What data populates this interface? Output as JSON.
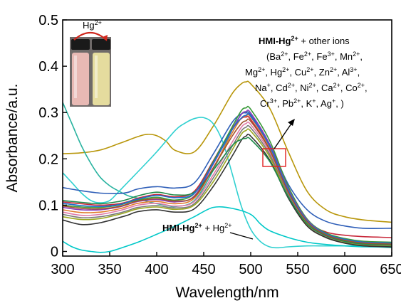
{
  "chart_data": {
    "type": "line",
    "xlabel": "Wavelength/nm",
    "ylabel": "Absorbance/a.u.",
    "xlim": [
      300,
      650
    ],
    "ylim": [
      -0.01,
      0.5
    ],
    "xticks": [
      300,
      350,
      400,
      450,
      500,
      550,
      600,
      650
    ],
    "yticks": [
      0,
      0.1,
      0.2,
      0.3,
      0.4,
      0.5
    ],
    "ytick_labels": [
      "0",
      "0.1",
      "0.2",
      "0.3",
      "0.4",
      "0.5"
    ],
    "grid": false,
    "annotations": {
      "inset_label": "Hg",
      "inset_label_sup": "2+",
      "top_head_bold": "HMI-Hg",
      "top_head_bold_sup": "2+",
      "top_head_rest": " + other ions",
      "ion_lines": [
        [
          [
            "(Ba",
            "2+"
          ],
          [
            ", Fe",
            "2+"
          ],
          [
            ", Fe",
            "3+"
          ],
          [
            ", Mn",
            "2+"
          ],
          [
            ",",
            ""
          ]
        ],
        [
          [
            "Mg",
            "2+"
          ],
          [
            ", Hg",
            "2+"
          ],
          [
            ", Cu",
            "2+"
          ],
          [
            ", Zn",
            "2+"
          ],
          [
            ", Al",
            "3+"
          ],
          [
            ",",
            ""
          ]
        ],
        [
          [
            "Na",
            "+"
          ],
          [
            ", Cd",
            "2+"
          ],
          [
            ", Ni",
            "2+"
          ],
          [
            ", Ca",
            "2+"
          ],
          [
            ", Co",
            "2+"
          ],
          [
            ",",
            ""
          ]
        ],
        [
          [
            "Cr",
            "3+"
          ],
          [
            ", Pb",
            "2+"
          ],
          [
            ", K",
            "+"
          ],
          [
            ", Ag",
            "+"
          ],
          [
            ", )",
            ""
          ]
        ]
      ],
      "bottom_bold": "HMI-Hg",
      "bottom_bold_sup": "2+",
      "bottom_rest": " + Hg",
      "bottom_rest_sup": "2+"
    },
    "series": [
      {
        "color": "#b8960a",
        "x": [
          300,
          320,
          340,
          360,
          380,
          390,
          400,
          410,
          420,
          440,
          460,
          480,
          490,
          495,
          500,
          520,
          540,
          560,
          580,
          600,
          620,
          650
        ],
        "y": [
          0.211,
          0.213,
          0.219,
          0.233,
          0.248,
          0.253,
          0.25,
          0.238,
          0.218,
          0.215,
          0.27,
          0.34,
          0.362,
          0.366,
          0.362,
          0.31,
          0.215,
          0.13,
          0.09,
          0.075,
          0.068,
          0.063
        ]
      },
      {
        "color": "#2ab3a0",
        "x": [
          300,
          310,
          320,
          330,
          340,
          350,
          360,
          370,
          380,
          390,
          400,
          410,
          420,
          440,
          460,
          480,
          490,
          495,
          500,
          520,
          540,
          560,
          580,
          600,
          620,
          650
        ],
        "y": [
          0.322,
          0.275,
          0.228,
          0.19,
          0.16,
          0.142,
          0.13,
          0.12,
          0.115,
          0.108,
          0.103,
          0.1,
          0.097,
          0.11,
          0.175,
          0.262,
          0.296,
          0.3,
          0.295,
          0.23,
          0.13,
          0.065,
          0.032,
          0.018,
          0.012,
          0.008
        ]
      },
      {
        "color": "#2fd0d0",
        "x": [
          300,
          310,
          320,
          330,
          340,
          350,
          360,
          380,
          400,
          420,
          430,
          440,
          450,
          460,
          470,
          480,
          490,
          500,
          510,
          520,
          530,
          540,
          560,
          580,
          600,
          620,
          650
        ],
        "y": [
          0.17,
          0.148,
          0.126,
          0.11,
          0.105,
          0.11,
          0.13,
          0.172,
          0.215,
          0.262,
          0.277,
          0.287,
          0.289,
          0.276,
          0.238,
          0.17,
          0.098,
          0.048,
          0.022,
          0.01,
          0.008,
          0.01,
          0.012,
          0.012,
          0.012,
          0.012,
          0.012
        ]
      },
      {
        "color": "#00c8c8",
        "x": [
          300,
          310,
          320,
          330,
          340,
          350,
          360,
          380,
          400,
          420,
          440,
          460,
          480,
          500,
          510,
          520,
          540,
          560,
          580,
          600,
          620,
          650
        ],
        "y": [
          0.022,
          0.01,
          0.003,
          0.0,
          -0.002,
          0.0,
          0.006,
          0.02,
          0.037,
          0.055,
          0.075,
          0.095,
          0.093,
          0.08,
          0.06,
          0.045,
          0.03,
          0.02,
          0.015,
          0.012,
          0.01,
          0.01
        ]
      },
      {
        "color": "#2f5fb8",
        "x": [
          300,
          320,
          340,
          360,
          370,
          380,
          400,
          420,
          440,
          460,
          480,
          490,
          495,
          500,
          520,
          540,
          560,
          580,
          600,
          620,
          650
        ],
        "y": [
          0.138,
          0.131,
          0.126,
          0.125,
          0.128,
          0.135,
          0.14,
          0.137,
          0.148,
          0.21,
          0.278,
          0.297,
          0.299,
          0.295,
          0.232,
          0.145,
          0.09,
          0.065,
          0.055,
          0.05,
          0.05
        ]
      },
      {
        "color": "#c8283a",
        "x": [
          300,
          320,
          340,
          360,
          370,
          380,
          400,
          420,
          440,
          460,
          480,
          490,
          495,
          500,
          520,
          540,
          560,
          580,
          600,
          620,
          650
        ],
        "y": [
          0.107,
          0.103,
          0.1,
          0.103,
          0.108,
          0.115,
          0.123,
          0.118,
          0.13,
          0.195,
          0.265,
          0.287,
          0.29,
          0.285,
          0.22,
          0.125,
          0.065,
          0.042,
          0.035,
          0.032,
          0.03
        ]
      },
      {
        "color": "#3a9a3a",
        "x": [
          300,
          320,
          340,
          360,
          370,
          380,
          400,
          420,
          440,
          460,
          480,
          490,
          495,
          500,
          520,
          540,
          560,
          580,
          600,
          620,
          650
        ],
        "y": [
          0.1,
          0.096,
          0.095,
          0.1,
          0.106,
          0.111,
          0.117,
          0.111,
          0.125,
          0.193,
          0.268,
          0.304,
          0.31,
          0.307,
          0.24,
          0.14,
          0.07,
          0.04,
          0.028,
          0.022,
          0.02
        ]
      },
      {
        "color": "#8a3ab8",
        "x": [
          300,
          320,
          340,
          360,
          370,
          380,
          400,
          420,
          440,
          460,
          480,
          490,
          495,
          500,
          520,
          540,
          560,
          580,
          600,
          620,
          650
        ],
        "y": [
          0.095,
          0.09,
          0.09,
          0.096,
          0.102,
          0.108,
          0.112,
          0.107,
          0.12,
          0.188,
          0.262,
          0.296,
          0.302,
          0.299,
          0.232,
          0.135,
          0.068,
          0.038,
          0.026,
          0.02,
          0.018
        ]
      },
      {
        "color": "#e07a2a",
        "x": [
          300,
          320,
          340,
          360,
          370,
          380,
          400,
          420,
          440,
          460,
          480,
          490,
          495,
          500,
          520,
          540,
          560,
          580,
          600,
          620,
          650
        ],
        "y": [
          0.09,
          0.084,
          0.085,
          0.092,
          0.098,
          0.104,
          0.108,
          0.103,
          0.115,
          0.18,
          0.255,
          0.288,
          0.292,
          0.29,
          0.225,
          0.13,
          0.065,
          0.036,
          0.024,
          0.018,
          0.016
        ]
      },
      {
        "color": "#e07aa8",
        "x": [
          300,
          320,
          340,
          360,
          370,
          380,
          400,
          420,
          440,
          460,
          480,
          490,
          495,
          500,
          520,
          540,
          560,
          580,
          600,
          620,
          650
        ],
        "y": [
          0.085,
          0.078,
          0.08,
          0.088,
          0.094,
          0.1,
          0.104,
          0.098,
          0.108,
          0.165,
          0.235,
          0.268,
          0.276,
          0.274,
          0.215,
          0.125,
          0.06,
          0.033,
          0.022,
          0.016,
          0.014
        ]
      },
      {
        "color": "#7a7a7a",
        "x": [
          300,
          320,
          340,
          360,
          370,
          380,
          400,
          420,
          440,
          460,
          480,
          490,
          495,
          500,
          520,
          540,
          560,
          580,
          600,
          620,
          650
        ],
        "y": [
          0.08,
          0.073,
          0.075,
          0.083,
          0.089,
          0.095,
          0.099,
          0.094,
          0.103,
          0.158,
          0.226,
          0.26,
          0.268,
          0.267,
          0.21,
          0.122,
          0.058,
          0.031,
          0.02,
          0.014,
          0.012
        ]
      },
      {
        "color": "#9aa820",
        "x": [
          300,
          320,
          340,
          360,
          370,
          380,
          400,
          420,
          440,
          460,
          480,
          490,
          495,
          500,
          520,
          540,
          560,
          580,
          600,
          620,
          650
        ],
        "y": [
          0.075,
          0.069,
          0.071,
          0.08,
          0.086,
          0.092,
          0.096,
          0.091,
          0.1,
          0.15,
          0.218,
          0.253,
          0.261,
          0.26,
          0.205,
          0.118,
          0.056,
          0.03,
          0.019,
          0.013,
          0.011
        ]
      },
      {
        "color": "#333333",
        "x": [
          300,
          320,
          340,
          360,
          370,
          380,
          400,
          420,
          440,
          460,
          480,
          490,
          495,
          500,
          520,
          540,
          560,
          580,
          600,
          620,
          650
        ],
        "y": [
          0.068,
          0.058,
          0.062,
          0.073,
          0.079,
          0.086,
          0.09,
          0.085,
          0.092,
          0.14,
          0.205,
          0.24,
          0.249,
          0.249,
          0.198,
          0.115,
          0.055,
          0.03,
          0.018,
          0.012,
          0.01
        ]
      },
      {
        "color": "#1f8a4a",
        "x": [
          300,
          320,
          340,
          360,
          370,
          380,
          400,
          420,
          440,
          460,
          480,
          490,
          495,
          500,
          520,
          540,
          560,
          580,
          600,
          620,
          650
        ],
        "y": [
          0.11,
          0.106,
          0.103,
          0.108,
          0.113,
          0.12,
          0.128,
          0.122,
          0.128,
          0.175,
          0.228,
          0.242,
          0.244,
          0.242,
          0.195,
          0.118,
          0.06,
          0.034,
          0.022,
          0.016,
          0.014
        ]
      },
      {
        "color": "#1e6ed0",
        "x": [
          300,
          320,
          340,
          360,
          370,
          380,
          400,
          420,
          440,
          460,
          480,
          490,
          495,
          500,
          520,
          540,
          560,
          580,
          600,
          620,
          650
        ],
        "y": [
          0.104,
          0.099,
          0.097,
          0.101,
          0.107,
          0.113,
          0.121,
          0.116,
          0.126,
          0.19,
          0.262,
          0.288,
          0.294,
          0.292,
          0.228,
          0.132,
          0.066,
          0.038,
          0.026,
          0.02,
          0.018
        ]
      },
      {
        "color": "#a0522d",
        "x": [
          300,
          320,
          340,
          360,
          370,
          380,
          400,
          420,
          440,
          460,
          480,
          490,
          495,
          500,
          520,
          540,
          560,
          580,
          600,
          620,
          650
        ],
        "y": [
          0.098,
          0.093,
          0.092,
          0.097,
          0.103,
          0.109,
          0.114,
          0.109,
          0.118,
          0.18,
          0.248,
          0.276,
          0.282,
          0.281,
          0.22,
          0.128,
          0.064,
          0.036,
          0.024,
          0.018,
          0.016
        ]
      }
    ]
  },
  "inset_photo": {
    "cap_color": "#1a1a1a",
    "left_vial_color": "#e8b9b4",
    "right_vial_color": "#e5dc9e",
    "arrow_color": "#d0281e"
  },
  "highlight_box_color": "#e02020"
}
